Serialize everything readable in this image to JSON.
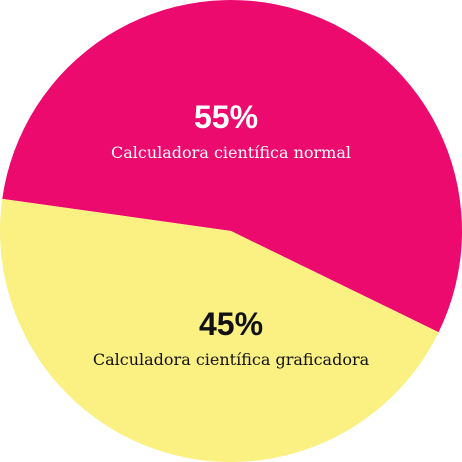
{
  "chart_data": {
    "type": "pie",
    "title": "",
    "slices": [
      {
        "label": "Calculadora científica normal",
        "value": 55,
        "value_label": "55%",
        "color": "#ec0a6e",
        "text_color": "#ffffff"
      },
      {
        "label": "Calculadora científica graficadora",
        "value": 45,
        "value_label": "45%",
        "color": "#fbf082",
        "text_color": "#111111"
      }
    ],
    "legend": "none",
    "data_labels": "inside"
  }
}
